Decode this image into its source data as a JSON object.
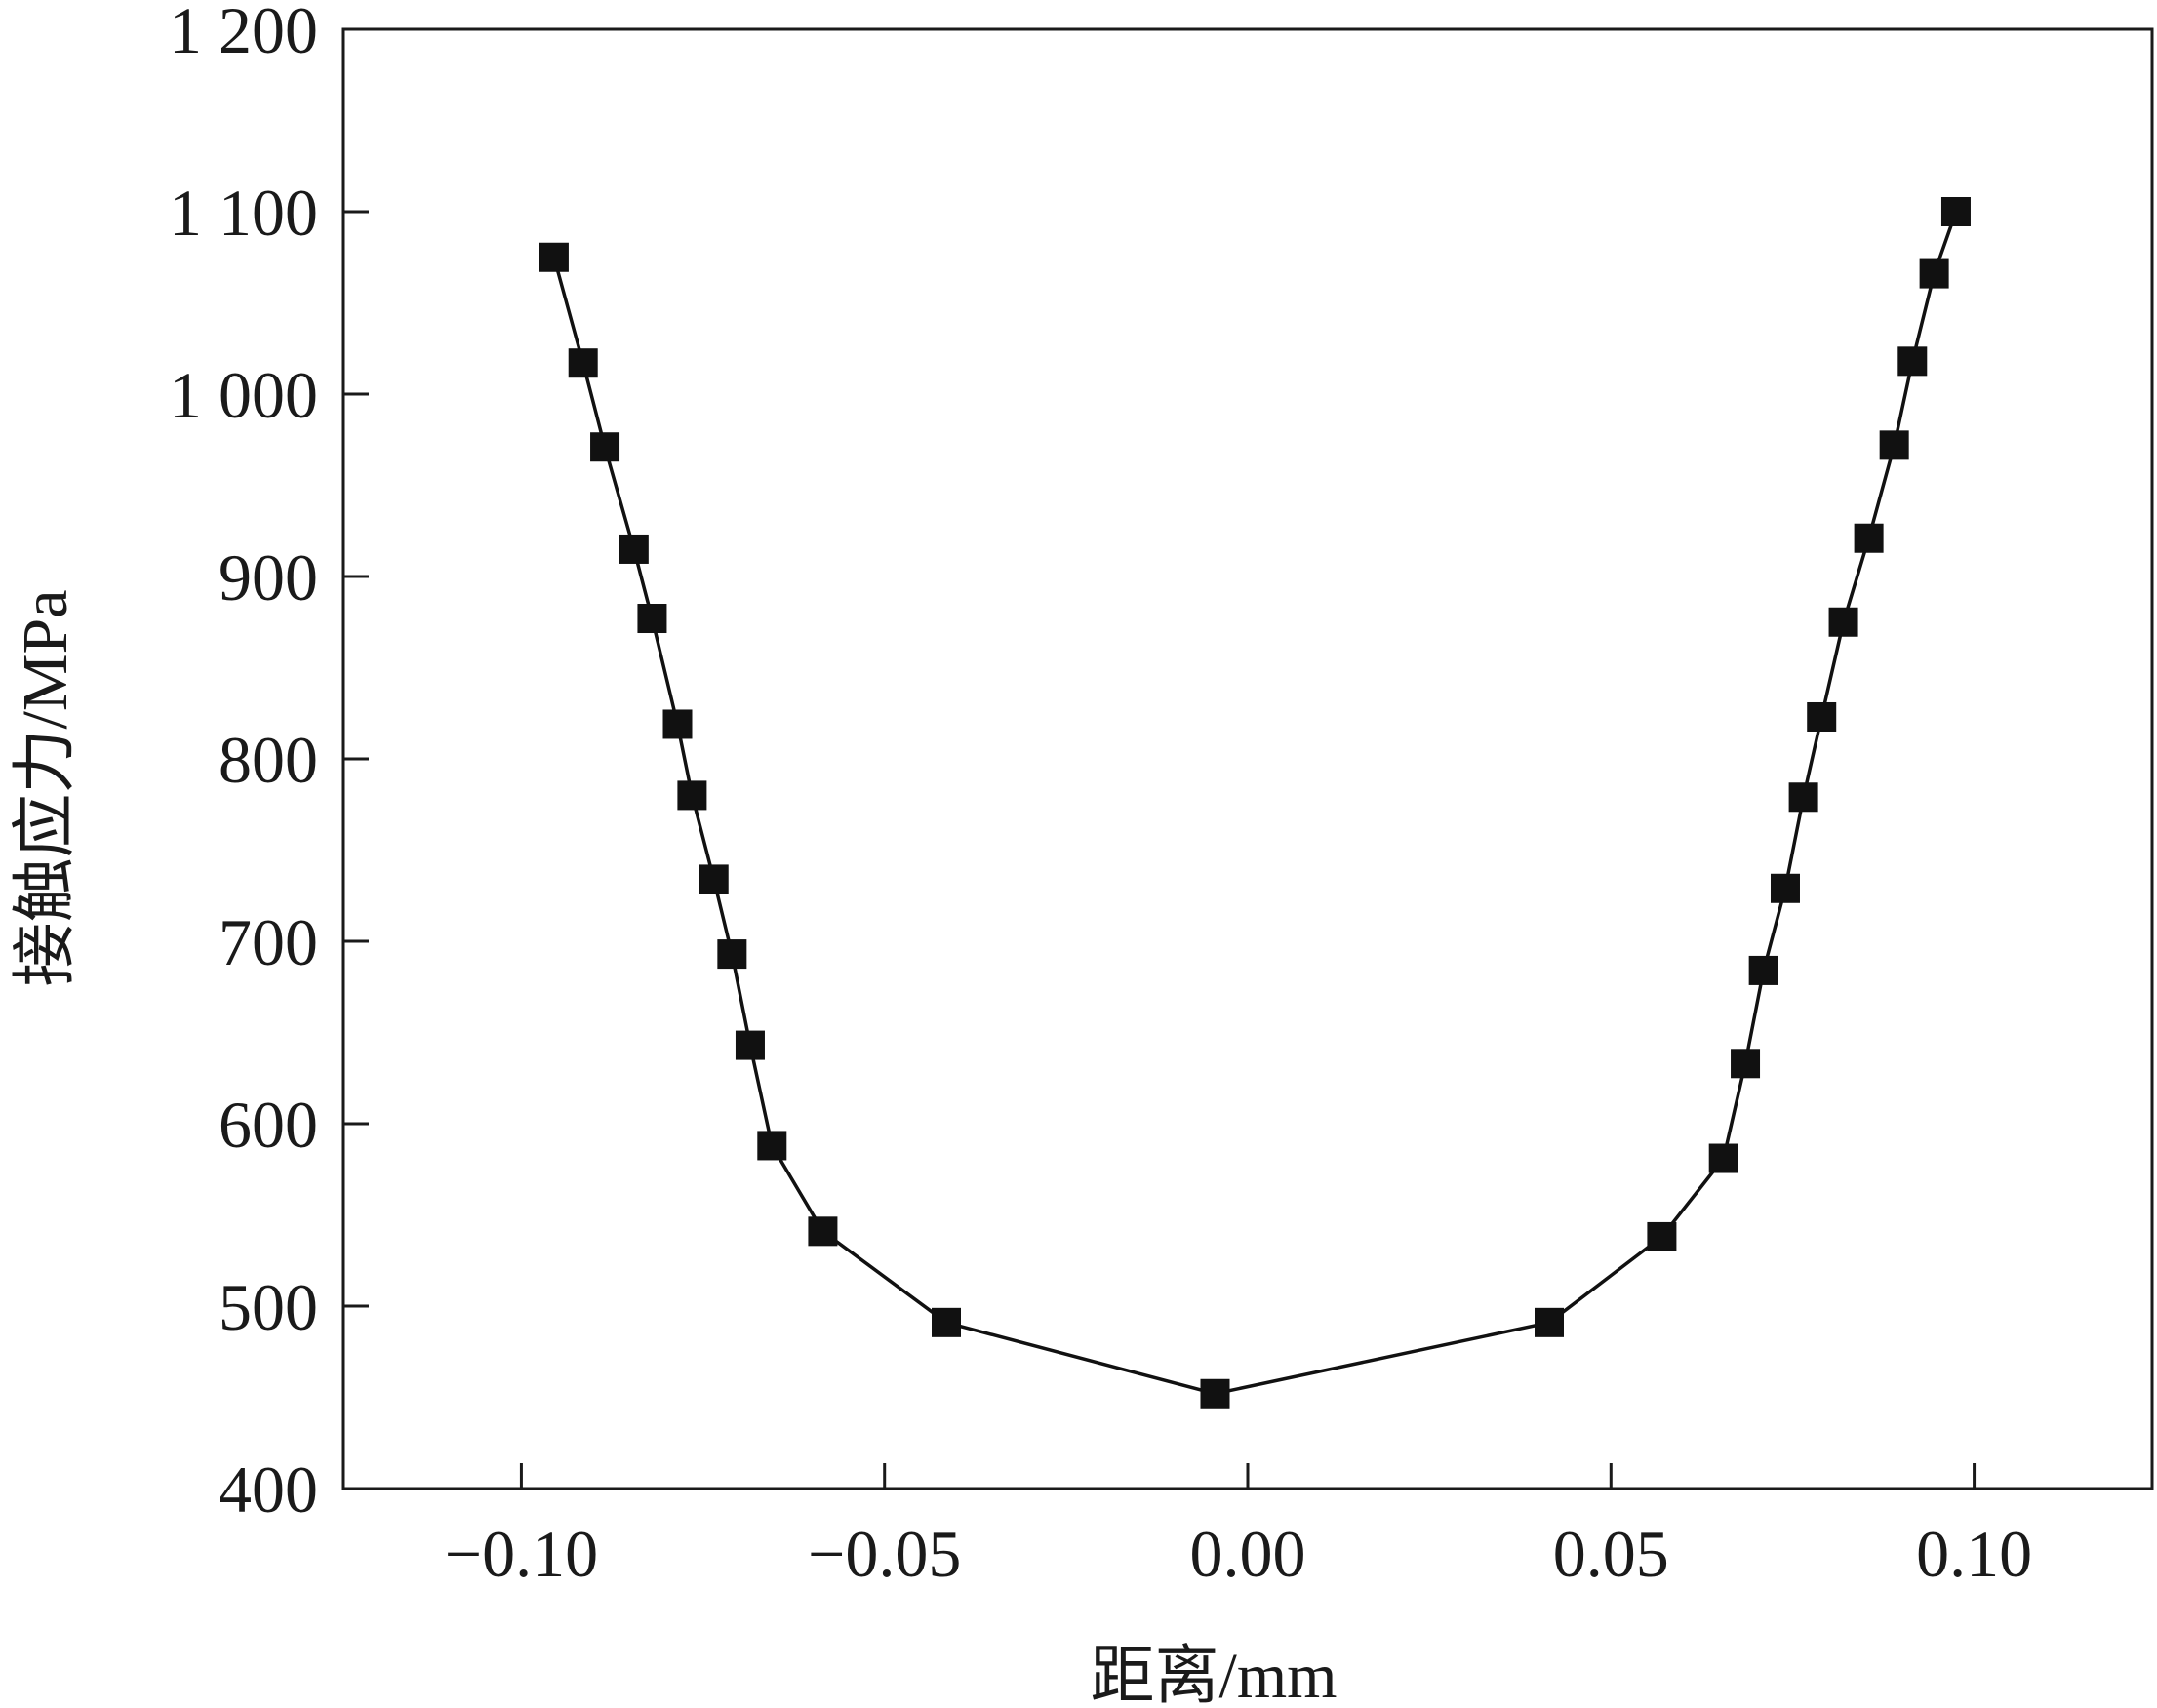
{
  "chart_data": {
    "type": "line",
    "title": "",
    "xlabel": "距离/mm",
    "ylabel": "接触应力/MPa",
    "xlim": [
      -0.1245,
      0.1245
    ],
    "ylim": [
      400,
      1200
    ],
    "xticks": [
      -0.1,
      -0.05,
      0.0,
      0.05,
      0.1
    ],
    "xtick_labels": [
      "−0.10",
      "−0.05",
      "0.00",
      "0.05",
      "0.10"
    ],
    "yticks": [
      400,
      500,
      600,
      700,
      800,
      900,
      1000,
      1100,
      1200
    ],
    "ytick_labels": [
      "400",
      "500",
      "600",
      "700",
      "800",
      "900",
      "1 000",
      "1 100",
      "1 200"
    ],
    "grid": false,
    "legend": "none",
    "series": [
      {
        "marker": "square",
        "color": "#111111",
        "points": [
          [
            -0.0955,
            1075
          ],
          [
            -0.0915,
            1017
          ],
          [
            -0.0885,
            971
          ],
          [
            -0.0845,
            915
          ],
          [
            -0.082,
            877
          ],
          [
            -0.0785,
            819
          ],
          [
            -0.0765,
            780
          ],
          [
            -0.0735,
            734
          ],
          [
            -0.071,
            693
          ],
          [
            -0.0685,
            643
          ],
          [
            -0.0655,
            588
          ],
          [
            -0.0585,
            541
          ],
          [
            -0.0415,
            491
          ],
          [
            -0.0045,
            452
          ],
          [
            0.0415,
            491
          ],
          [
            0.057,
            538
          ],
          [
            0.0655,
            581
          ],
          [
            0.0685,
            633
          ],
          [
            0.071,
            684
          ],
          [
            0.074,
            729
          ],
          [
            0.0765,
            779
          ],
          [
            0.079,
            823
          ],
          [
            0.082,
            875
          ],
          [
            0.0855,
            921
          ],
          [
            0.089,
            972
          ],
          [
            0.0915,
            1018
          ],
          [
            0.0945,
            1066
          ],
          [
            0.0975,
            1100
          ]
        ]
      }
    ]
  }
}
